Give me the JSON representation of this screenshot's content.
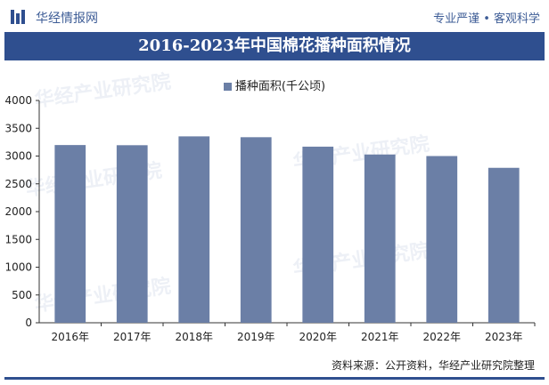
{
  "header": {
    "brand": "华经情报网",
    "tagline": "专业严谨 • 客观科学"
  },
  "colors": {
    "brand": "#2f4f8f",
    "bar": "#6b7fa6"
  },
  "chart_data": {
    "type": "bar",
    "title": "2016-2023年中国棉花播种面积情况",
    "categories": [
      "2016年",
      "2017年",
      "2018年",
      "2019年",
      "2020年",
      "2021年",
      "2022年",
      "2023年"
    ],
    "series": [
      {
        "name": "播种面积(千公顷)",
        "values": [
          3198,
          3195,
          3354,
          3339,
          3169,
          3028,
          3000,
          2788
        ]
      }
    ],
    "ylim": [
      0,
      4000
    ],
    "yticks": [
      0,
      500,
      1000,
      1500,
      2000,
      2500,
      3000,
      3500,
      4000
    ],
    "legend": "top-center",
    "grid": false
  },
  "source": "资料来源：公开资料，华经产业研究院整理",
  "watermark": {
    "text": "华经产业研究院",
    "url": "www.huaon.com"
  }
}
